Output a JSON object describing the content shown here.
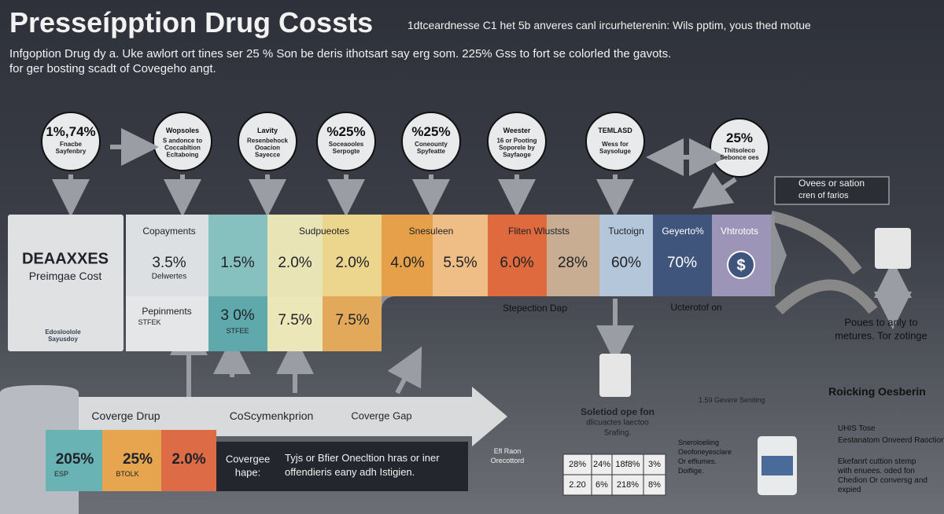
{
  "header": {
    "title": "Presseípption Drug Cossts",
    "tagline": "1dtceardnesse C1 het 5b anveres canl ircurheterenin: Wils pptim, yous thed motue",
    "intro": [
      "Infgoption Drug dy a. Uke awlort ort tines ser 25 % Son be deris ithotsart say erg som. 225% Gss to fort se colorled the gavots.",
      "for ger bosting scadt of Covegeho angt."
    ]
  },
  "circles": [
    {
      "value": "1%,74%",
      "caption": "Fnacbe Sayfenbry"
    },
    {
      "value": "Wopsoles",
      "caption": "S andonce to Coccabltion Ecltaboing"
    },
    {
      "value": "Lavity",
      "caption": "Resenbehock Ooacion Sayecce"
    },
    {
      "value": "%25%",
      "caption": "Soceaooles Serpogte"
    },
    {
      "value": "%25%",
      "caption": "Coneounty Spyfeatte"
    },
    {
      "value": "Weester",
      "caption": "16 or Pooting Soporele by Sayfaoge"
    },
    {
      "value": "TEMLASD",
      "caption": "Wess for Saysoluge"
    },
    {
      "value": "25%",
      "caption": "Thitsoleco Sebonce oes"
    }
  ],
  "left_box": {
    "title": "DEAAXXES",
    "subtitle": "Preimgae Cost",
    "caption": "Edosloolole Sayusdoy"
  },
  "band": {
    "headers": [
      "Copayments",
      "Sudpueotes",
      "Snesuleen",
      "Fliten Wluststs",
      "Tuctoign",
      "Geyerto%",
      "Vhtrotots"
    ],
    "values": [
      "3.5%",
      "1.5%",
      "2.0%",
      "2.0%",
      "4.0%",
      "5.5%",
      "6.0%",
      "28%",
      "60%",
      "70%"
    ],
    "values_note": "Delwertes",
    "row2_label": "Pepinments",
    "row2_note": "STFEK",
    "row2": [
      "3 0%",
      "7.5%",
      "7.5%"
    ],
    "row2_note2": "STFEE",
    "labels": [
      "Stepection Dap",
      "Ucterotof on"
    ]
  },
  "right": {
    "box": [
      "Ovees or sation",
      "cren of farios"
    ],
    "note": [
      "Poues to anly to",
      "metures. Tor zotinge"
    ],
    "heading": "Roicking Oesberin"
  },
  "bottom": {
    "arrow_labels": [
      "Coverge Drup",
      "CoScymenkprion",
      "Coverge Gap"
    ],
    "boxes": [
      {
        "value": "205%",
        "note": "ESP"
      },
      {
        "value": "25%",
        "note": "BTOLK"
      },
      {
        "value": "2.0%"
      }
    ],
    "dark_box": {
      "label": [
        "Covergee",
        "hape:"
      ],
      "text": [
        "Tyjs or Bfier Onecltion hras or iner",
        "offendieris eany adh Istigien."
      ]
    },
    "small_label": [
      "Efl Raon",
      "Orecottord"
    ],
    "mini_table": [
      [
        "28%",
        "24%",
        "18f8%",
        "3%"
      ],
      [
        "2.20",
        "6%",
        "218%",
        "8%"
      ]
    ],
    "select_text": [
      "Soletiod ope fon",
      "dlicuactes laectoo",
      "Srafing."
    ],
    "middle_text": [
      "Sneroloeliing",
      "Oeofoneyesclare",
      "Or effiumes.",
      "Doiflige."
    ],
    "gev_label": "1.59 Gevere Seniting",
    "side_list": {
      "title": "UHIS Tose",
      "items": [
        "Eestanatom Onveerd Raoction Drar",
        "Ekefanrt cuttion stemp with enuees. oded fon Chedion Or conversg and expied"
      ]
    }
  }
}
